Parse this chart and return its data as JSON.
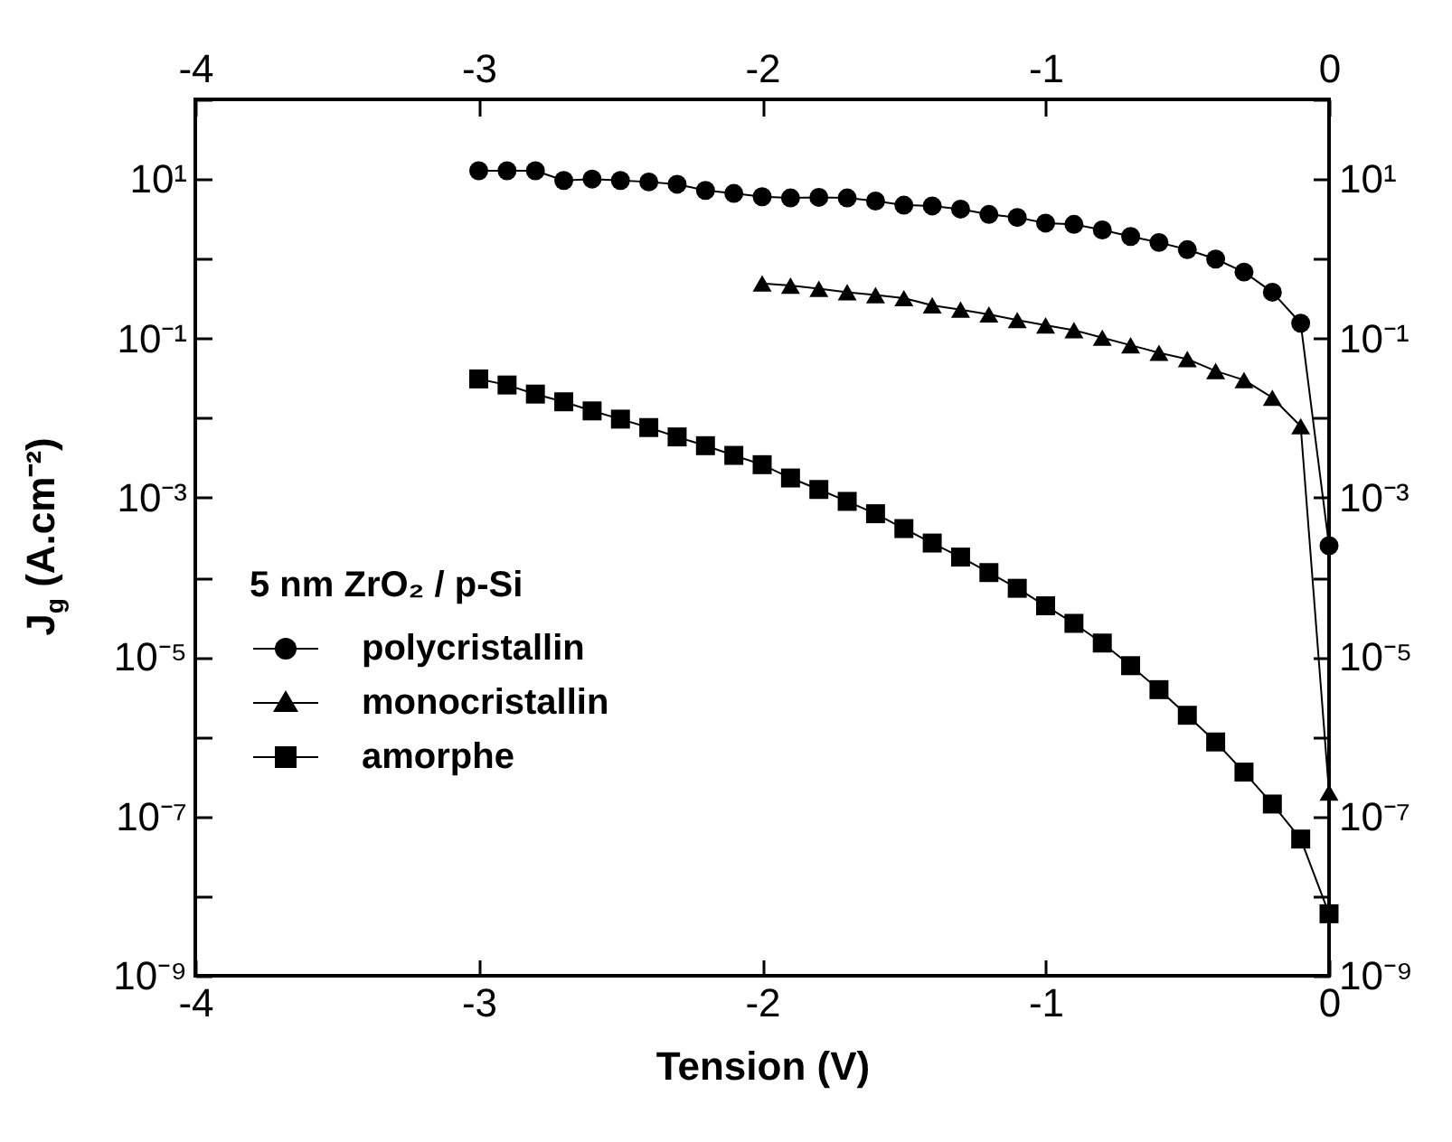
{
  "chart_data": {
    "type": "line",
    "xlabel": "Tension (V)",
    "ylabel": "J$_{g}$ (A.cm⁻²)",
    "legend_title": "5 nm ZrO₂ / p-Si",
    "legend": "bottom left",
    "log": "y",
    "grid": false,
    "line_style": "solid",
    "xlim": [
      -4,
      0
    ],
    "xticks": [
      -4,
      -3,
      -2,
      -1,
      0
    ],
    "x2lim": [
      -4,
      0
    ],
    "x2ticks": [
      -4,
      -3,
      -2,
      -1,
      0
    ],
    "ylim": [
      1e-09,
      100
    ],
    "yticks": [
      {
        "value": 1e-09,
        "label": "10⁻⁹"
      },
      {
        "value": 1e-08,
        "label": null
      },
      {
        "value": 1e-07,
        "label": "10⁻⁷"
      },
      {
        "value": 1e-06,
        "label": null
      },
      {
        "value": 1e-05,
        "label": "10⁻⁵"
      },
      {
        "value": 0.0001,
        "label": null
      },
      {
        "value": 0.001,
        "label": "10⁻³"
      },
      {
        "value": 0.01,
        "label": null
      },
      {
        "value": 0.1,
        "label": "10⁻¹"
      },
      {
        "value": 1,
        "label": null
      },
      {
        "value": 10,
        "label": "10¹"
      },
      {
        "value": 100,
        "label": null
      }
    ],
    "series": [
      {
        "name": "polycristallin",
        "color": "#000000",
        "marker": "circle",
        "x": [
          -3,
          -2.9,
          -2.8,
          -2.7,
          -2.6,
          -2.5,
          -2.4,
          -2.3,
          -2.2,
          -2.1,
          -2,
          -1.9,
          -1.8,
          -1.7,
          -1.6,
          -1.5,
          -1.4,
          -1.3,
          -1.2,
          -1.1,
          -1,
          -0.9,
          -0.8,
          -0.7,
          -0.6,
          -0.5,
          -0.4,
          -0.3,
          -0.2,
          -0.1,
          0
        ],
        "values": [
          12.7,
          12.7,
          12.7,
          9.6,
          10,
          9.6,
          9.2,
          8.6,
          7.2,
          6.6,
          6.0,
          5.8,
          5.9,
          5.8,
          5.3,
          4.7,
          4.6,
          4.2,
          3.6,
          3.3,
          2.8,
          2.7,
          2.3,
          1.9,
          1.6,
          1.3,
          0.99,
          0.68,
          0.38,
          0.155,
          0.00025
        ]
      },
      {
        "name": "monocristallin",
        "color": "#000000",
        "marker": "triangle",
        "x": [
          -2,
          -1.9,
          -1.8,
          -1.7,
          -1.6,
          -1.5,
          -1.4,
          -1.3,
          -1.2,
          -1.1,
          -1,
          -0.9,
          -0.8,
          -0.7,
          -0.6,
          -0.5,
          -0.4,
          -0.3,
          -0.2,
          -0.1,
          0
        ],
        "values": [
          0.49,
          0.46,
          0.42,
          0.38,
          0.35,
          0.32,
          0.26,
          0.23,
          0.2,
          0.17,
          0.146,
          0.127,
          0.102,
          0.082,
          0.066,
          0.055,
          0.039,
          0.03,
          0.018,
          0.0079,
          2e-07
        ]
      },
      {
        "name": "amorphe",
        "color": "#000000",
        "marker": "square",
        "x": [
          -3,
          -2.9,
          -2.8,
          -2.7,
          -2.6,
          -2.5,
          -2.4,
          -2.3,
          -2.2,
          -2.1,
          -2,
          -1.9,
          -1.8,
          -1.7,
          -1.6,
          -1.5,
          -1.4,
          -1.3,
          -1.2,
          -1.1,
          -1,
          -0.9,
          -0.8,
          -0.7,
          -0.6,
          -0.5,
          -0.4,
          -0.3,
          -0.2,
          -0.1,
          0
        ],
        "values": [
          0.031,
          0.026,
          0.02,
          0.016,
          0.0123,
          0.0097,
          0.0076,
          0.0058,
          0.0045,
          0.0034,
          0.0026,
          0.00177,
          0.00127,
          0.0009,
          0.00063,
          0.00041,
          0.00027,
          0.00018,
          0.000115,
          7.3e-05,
          4.4e-05,
          2.65e-05,
          1.5e-05,
          7.8e-06,
          3.9e-06,
          1.86e-06,
          8.6e-07,
          3.6e-07,
          1.43e-07,
          5.2e-08,
          6e-09
        ]
      }
    ]
  }
}
